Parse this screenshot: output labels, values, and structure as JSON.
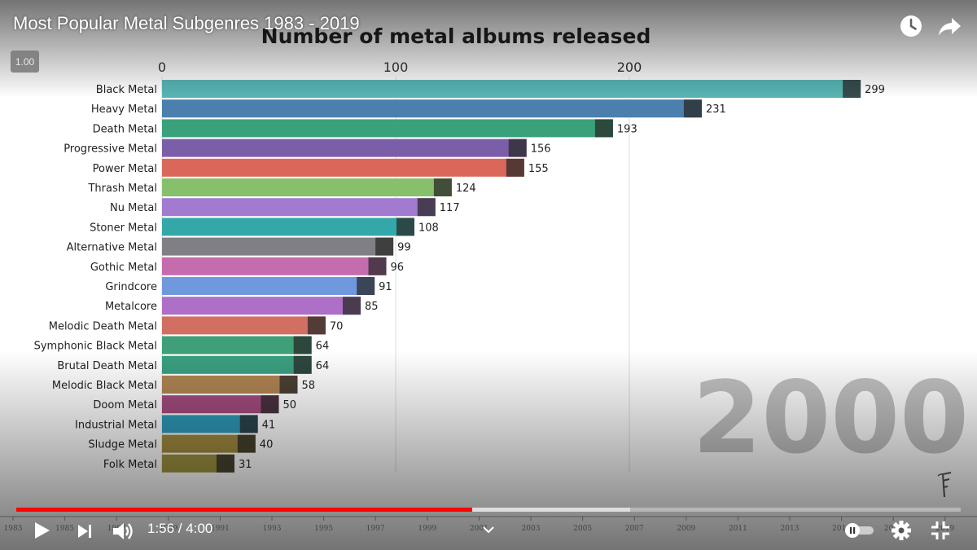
{
  "video": {
    "title": "Most Popular Metal Subgenres 1983 - 2019",
    "speed": "1.00",
    "time_current": "1:56",
    "time_total": "4:00",
    "progress": 0.483,
    "buffered": 0.65
  },
  "chart_data": {
    "type": "bar",
    "orientation": "horizontal",
    "title": "Number of metal albums released",
    "year": "2000",
    "xlim": [
      0,
      300
    ],
    "xticks": [
      0,
      100,
      200
    ],
    "grid": true,
    "categories": [
      "Black Metal",
      "Heavy Metal",
      "Death Metal",
      "Progressive Metal",
      "Power Metal",
      "Thrash Metal",
      "Nu Metal",
      "Stoner Metal",
      "Alternative Metal",
      "Gothic Metal",
      "Grindcore",
      "Metalcore",
      "Melodic Death Metal",
      "Symphonic Black Metal",
      "Brutal Death Metal",
      "Melodic Black Metal",
      "Doom Metal",
      "Industrial Metal",
      "Sludge Metal",
      "Folk Metal"
    ],
    "values": [
      299,
      231,
      193,
      156,
      155,
      124,
      117,
      108,
      99,
      96,
      91,
      85,
      70,
      64,
      64,
      58,
      50,
      41,
      40,
      31
    ],
    "colors": [
      "#58b5b3",
      "#4a7fae",
      "#3aa27a",
      "#7b5ea8",
      "#d9685a",
      "#86c06a",
      "#a27ad0",
      "#34a8a8",
      "#7f7f85",
      "#c46cae",
      "#6f98dd",
      "#ad6fc7",
      "#d06f62",
      "#3f9f78",
      "#3a9f80",
      "#b08553",
      "#a54c80",
      "#2f9ab8",
      "#a18a3e",
      "#9d9240"
    ],
    "timeline_labels": [
      "1983",
      "1985",
      "1987",
      "1989",
      "1991",
      "1993",
      "1995",
      "1997",
      "1999",
      "2001",
      "2003",
      "2005",
      "2007",
      "2009",
      "2011",
      "2013",
      "2015",
      "2017",
      "2019"
    ]
  },
  "controls": {
    "play_icon": "play-icon",
    "next_icon": "next-icon",
    "volume_icon": "volume-icon",
    "autoplay_icon": "autoplay-toggle-icon",
    "settings_icon": "gear-icon",
    "exit_fullscreen_icon": "exit-fullscreen-icon",
    "watch_later_icon": "clock-icon",
    "share_icon": "share-icon"
  }
}
